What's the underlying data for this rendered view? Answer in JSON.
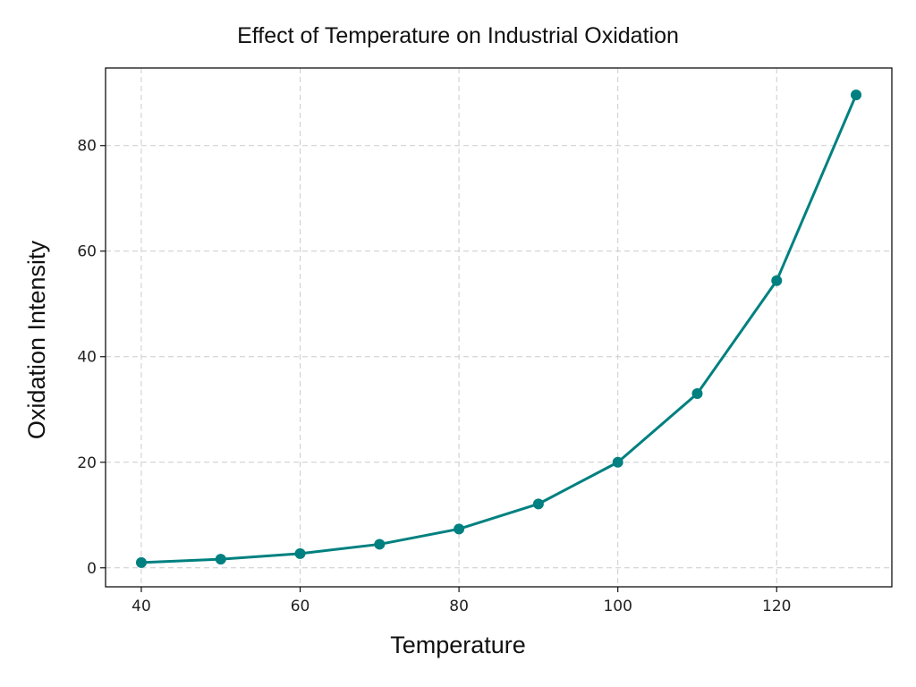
{
  "chart_data": {
    "type": "line",
    "title": "Effect of Temperature on Industrial Oxidation",
    "xlabel": "Temperature",
    "ylabel": "Oxidation Intensity",
    "x": [
      40,
      50,
      60,
      70,
      80,
      90,
      100,
      110,
      120,
      130
    ],
    "series": [
      {
        "values": [
          1.0,
          1.64,
          2.7,
          4.46,
          7.36,
          12.1,
          20.0,
          33.0,
          54.4,
          89.6
        ],
        "color": "#008080",
        "marker": "circle"
      }
    ],
    "xlim": [
      35.5,
      134.5
    ],
    "ylim": [
      -3.6,
      94.7
    ],
    "xticks": [
      40,
      60,
      80,
      100,
      120
    ],
    "yticks": [
      0,
      20,
      40,
      60,
      80
    ],
    "grid": true,
    "grid_style": "dashed"
  }
}
